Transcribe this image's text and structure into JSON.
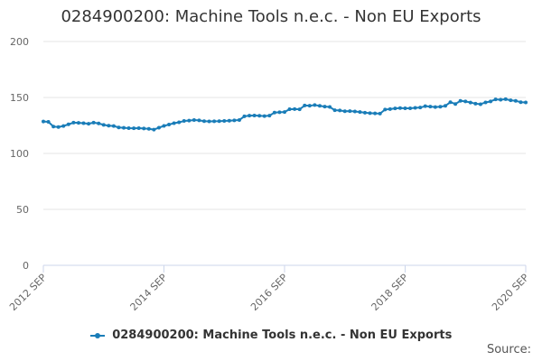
{
  "title": "0284900200: Machine Tools n.e.c. - Non EU Exports",
  "source_label": "Source:",
  "colors": {
    "series": "#1a7db8",
    "grid": "#e6e6e6",
    "axis": "#ccd6eb",
    "text": "#666666"
  },
  "chart_data": {
    "type": "line",
    "title": "0284900200: Machine Tools n.e.c. - Non EU Exports",
    "xlabel": "",
    "ylabel": "",
    "ylim": [
      0,
      200
    ],
    "yticks": [
      0,
      50,
      100,
      150,
      200
    ],
    "xtick_labels": [
      "2012 SEP",
      "2014 SEP",
      "2016 SEP",
      "2018 SEP",
      "2020 SEP"
    ],
    "grid": true,
    "legend_position": "bottom",
    "series": [
      {
        "name": "0284900200: Machine Tools n.e.c. - Non EU Exports",
        "x": [
          "2012-09",
          "2012-10",
          "2012-11",
          "2012-12",
          "2013-01",
          "2013-02",
          "2013-03",
          "2013-04",
          "2013-05",
          "2013-06",
          "2013-07",
          "2013-08",
          "2013-09",
          "2013-10",
          "2013-11",
          "2013-12",
          "2014-01",
          "2014-02",
          "2014-03",
          "2014-04",
          "2014-05",
          "2014-06",
          "2014-07",
          "2014-08",
          "2014-09",
          "2014-10",
          "2014-11",
          "2014-12",
          "2015-01",
          "2015-02",
          "2015-03",
          "2015-04",
          "2015-05",
          "2015-06",
          "2015-07",
          "2015-08",
          "2015-09",
          "2015-10",
          "2015-11",
          "2015-12",
          "2016-01",
          "2016-02",
          "2016-03",
          "2016-04",
          "2016-05",
          "2016-06",
          "2016-07",
          "2016-08",
          "2016-09",
          "2016-10",
          "2016-11",
          "2016-12",
          "2017-01",
          "2017-02",
          "2017-03",
          "2017-04",
          "2017-05",
          "2017-06",
          "2017-07",
          "2017-08",
          "2017-09",
          "2017-10",
          "2017-11",
          "2017-12",
          "2018-01",
          "2018-02",
          "2018-03",
          "2018-04",
          "2018-05",
          "2018-06",
          "2018-07",
          "2018-08",
          "2018-09",
          "2018-10",
          "2018-11",
          "2018-12",
          "2019-01",
          "2019-02",
          "2019-03",
          "2019-04",
          "2019-05",
          "2019-06",
          "2019-07",
          "2019-08",
          "2019-09",
          "2019-10",
          "2019-11",
          "2019-12",
          "2020-01",
          "2020-02",
          "2020-03",
          "2020-04",
          "2020-05",
          "2020-06",
          "2020-07",
          "2020-08",
          "2020-09"
        ],
        "values": [
          128.5,
          128.2,
          124.0,
          123.6,
          124.5,
          126.0,
          127.5,
          127.3,
          127.0,
          126.5,
          127.5,
          126.8,
          125.5,
          124.8,
          124.5,
          123.2,
          122.9,
          122.6,
          122.5,
          122.6,
          122.3,
          122.0,
          121.3,
          123.0,
          124.6,
          125.8,
          127.0,
          127.8,
          129.0,
          129.3,
          129.8,
          129.5,
          128.8,
          128.6,
          128.7,
          128.8,
          129.0,
          129.2,
          129.5,
          129.8,
          133.2,
          133.8,
          133.9,
          133.7,
          133.4,
          133.8,
          136.5,
          136.8,
          137.0,
          139.5,
          139.6,
          139.4,
          142.8,
          142.6,
          143.2,
          142.5,
          141.8,
          141.5,
          138.6,
          138.4,
          137.7,
          137.8,
          137.5,
          137.0,
          136.4,
          136.0,
          135.8,
          135.6,
          139.2,
          139.6,
          140.2,
          140.5,
          140.3,
          140.3,
          140.7,
          141.0,
          142.2,
          141.8,
          141.4,
          141.7,
          142.5,
          145.8,
          144.2,
          147.0,
          146.5,
          145.5,
          144.5,
          144.0,
          145.6,
          146.5,
          148.3,
          148.0,
          148.5,
          147.5,
          147.0,
          145.8,
          145.6
        ]
      }
    ]
  }
}
